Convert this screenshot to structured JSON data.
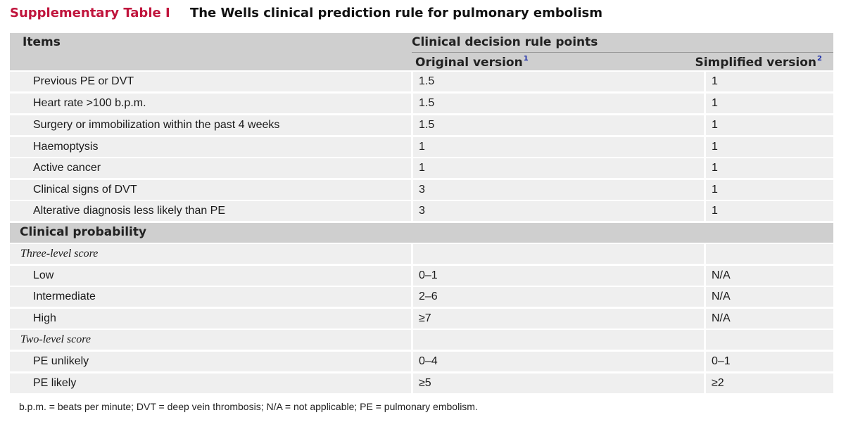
{
  "title": {
    "label": "Supplementary Table I",
    "text": "The Wells clinical prediction rule for pulmonary embolism"
  },
  "header": {
    "items": "Items",
    "points": "Clinical decision rule points",
    "original": "Original version",
    "original_ref": "1",
    "simplified": "Simplified version",
    "simplified_ref": "2"
  },
  "items": [
    {
      "name": "Previous PE or DVT",
      "original": "1.5",
      "simplified": "1"
    },
    {
      "name": "Heart rate >100 b.p.m.",
      "original": "1.5",
      "simplified": "1"
    },
    {
      "name": "Surgery or immobilization within the past 4 weeks",
      "original": "1.5",
      "simplified": "1"
    },
    {
      "name": "Haemoptysis",
      "original": "1",
      "simplified": "1"
    },
    {
      "name": "Active cancer",
      "original": "1",
      "simplified": "1"
    },
    {
      "name": "Clinical signs of DVT",
      "original": "3",
      "simplified": "1"
    },
    {
      "name": "Alterative diagnosis less likely than PE",
      "original": "3",
      "simplified": "1"
    }
  ],
  "probability": {
    "heading": "Clinical probability",
    "three_level": {
      "label": "Three-level score",
      "rows": [
        {
          "name": "Low",
          "original": "0–1",
          "simplified": "N/A"
        },
        {
          "name": "Intermediate",
          "original": "2–6",
          "simplified": "N/A"
        },
        {
          "name": "High",
          "original": "≥7",
          "simplified": "N/A"
        }
      ]
    },
    "two_level": {
      "label": "Two-level score",
      "rows": [
        {
          "name": "PE unlikely",
          "original": "0–4",
          "simplified": "0–1"
        },
        {
          "name": "PE likely",
          "original": "≥5",
          "simplified": "≥2"
        }
      ]
    }
  },
  "footnote": "b.p.m. = beats per minute; DVT = deep vein thrombosis; N/A = not applicable; PE = pulmonary embolism."
}
